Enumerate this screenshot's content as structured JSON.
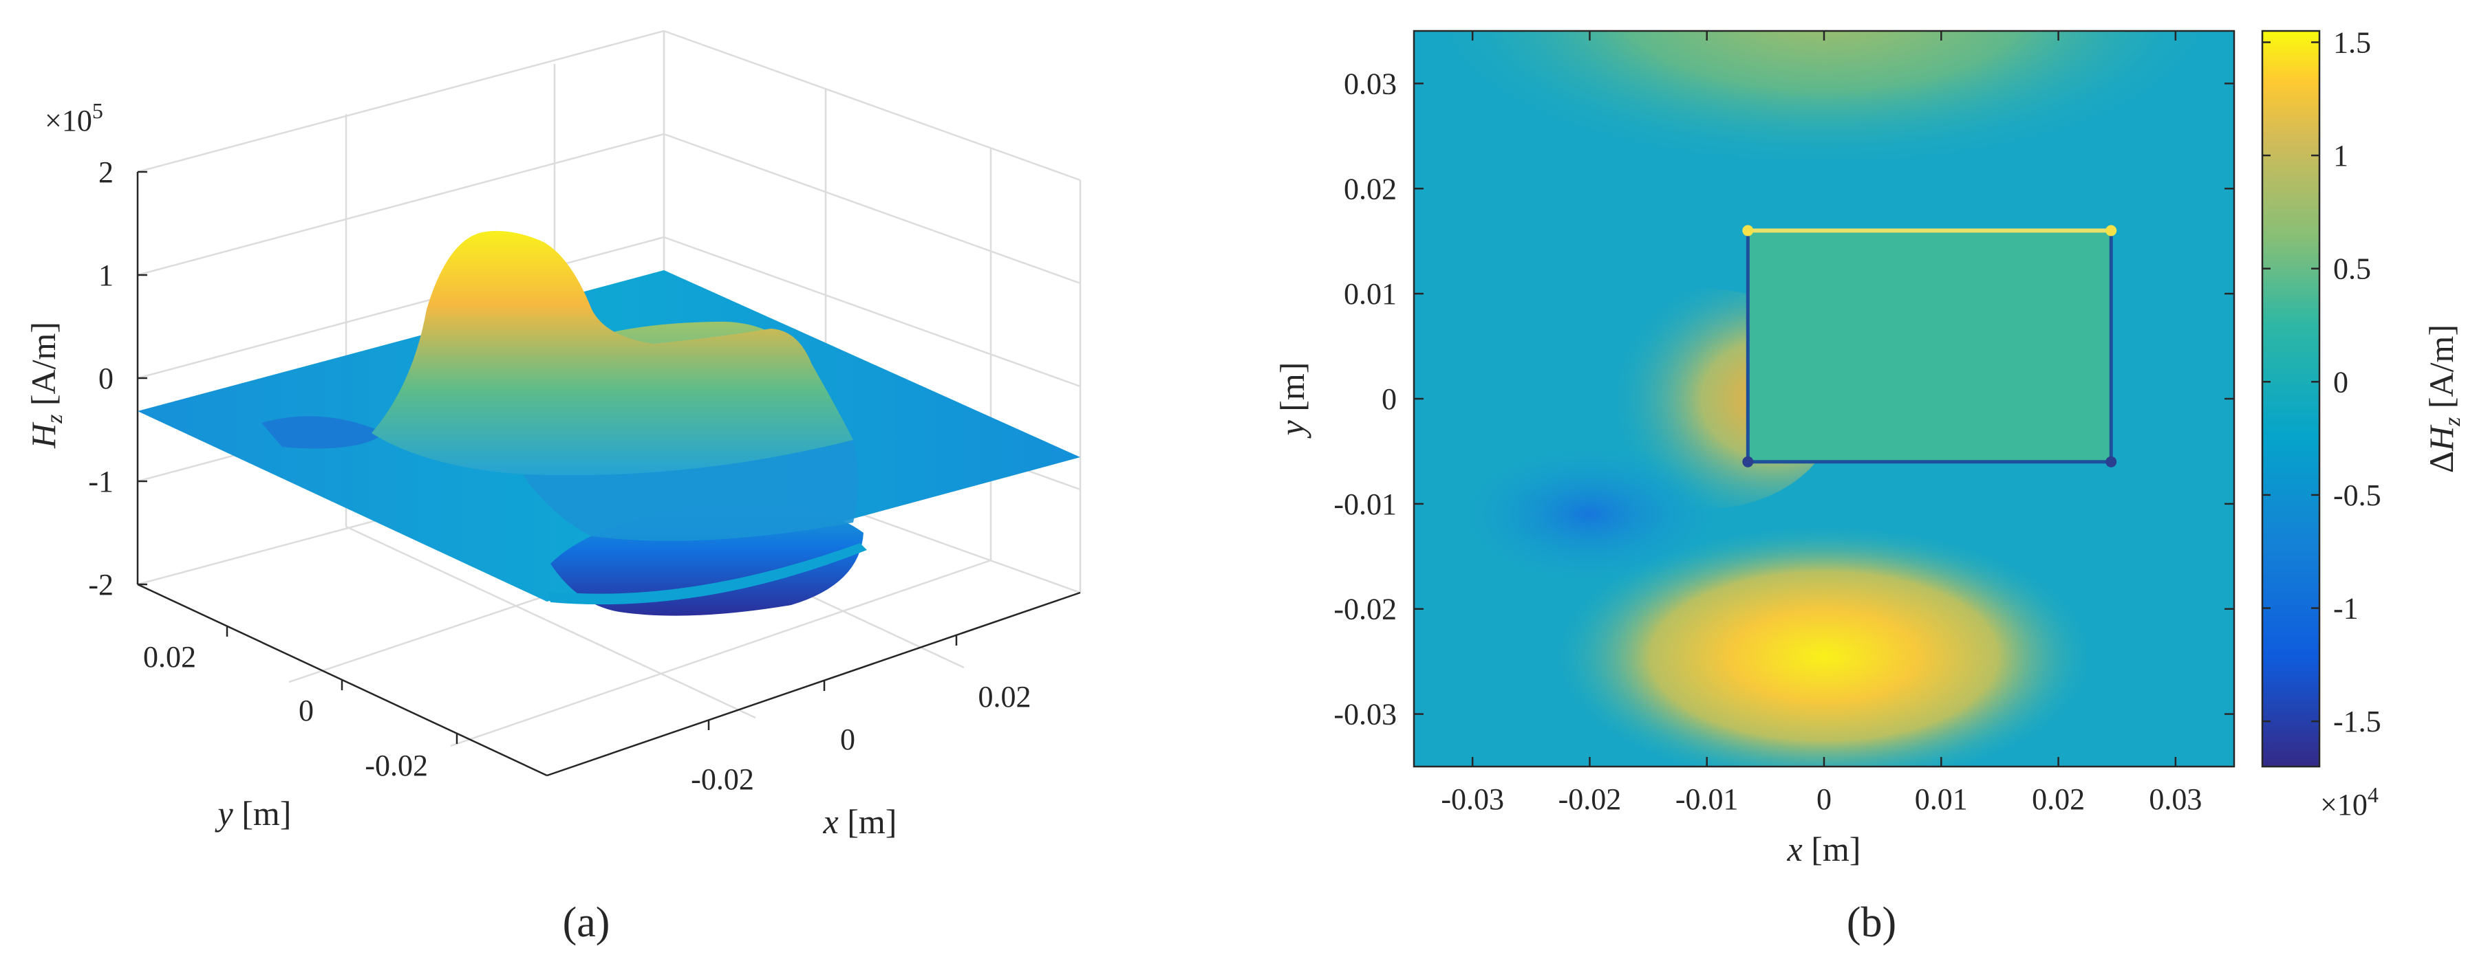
{
  "panels": [
    {
      "panel_label": "(a)",
      "chart_data": {
        "type": "surface",
        "zlabel": "H_z [A/m]",
        "xlabel": "x [m]",
        "ylabel": "y [m]",
        "zscale_label": "×10^5",
        "x_ticks": [
          "-0.02",
          "0",
          "0.02"
        ],
        "y_ticks": [
          "0.02",
          "0",
          "-0.02"
        ],
        "z_ticks": [
          "2",
          "1",
          "0",
          "-1",
          "-2"
        ],
        "z_tick_values": [
          2,
          1,
          0,
          -1,
          -2
        ],
        "zlim": [
          -2,
          2
        ],
        "z_multiplier": 100000,
        "colormap": "parula",
        "grid": true,
        "surface_features": [
          {
            "name": "peak",
            "x": -0.012,
            "y": 0.005,
            "z": 1.3
          },
          {
            "name": "shoulder",
            "x": 0.01,
            "y": 0.012,
            "z": 0.5
          },
          {
            "name": "trough",
            "x": 0.0,
            "y": -0.02,
            "z": -2.1
          },
          {
            "name": "baseline",
            "z": -0.35
          }
        ]
      }
    },
    {
      "panel_label": "(b)",
      "chart_data": {
        "type": "heatmap",
        "xlabel": "x [m]",
        "ylabel": "y [m]",
        "colorbar_label": "ΔH_z [A/m]",
        "colorbar_scale_label": "×10^4",
        "x_ticks": [
          "-0.03",
          "-0.02",
          "-0.01",
          "0",
          "0.01",
          "0.02",
          "0.03"
        ],
        "x_tick_values": [
          -0.03,
          -0.02,
          -0.01,
          0,
          0.01,
          0.02,
          0.03
        ],
        "y_ticks": [
          "0.03",
          "0.02",
          "0.01",
          "0",
          "-0.01",
          "-0.02",
          "-0.03"
        ],
        "y_tick_values": [
          0.03,
          0.02,
          0.01,
          0,
          -0.01,
          -0.02,
          -0.03
        ],
        "xlim": [
          -0.035,
          0.035
        ],
        "ylim": [
          -0.035,
          0.035
        ],
        "colorbar_ticks": [
          "1.5",
          "1",
          "0.5",
          "0",
          "-0.5",
          "-1",
          "-1.5"
        ],
        "colorbar_tick_values": [
          1.5,
          1,
          0.5,
          0,
          -0.5,
          -1,
          -1.5
        ],
        "clim": [
          -1.7,
          1.55
        ],
        "colormap": "parula",
        "rectangle": {
          "x": [
            -0.0065,
            0.0245
          ],
          "y": [
            -0.006,
            0.016
          ],
          "value": 0.35
        },
        "features": [
          {
            "name": "bottom-hotspot",
            "x": 0.0,
            "y": -0.0245,
            "value": 1.5,
            "rx": 0.012,
            "ry": 0.0065
          },
          {
            "name": "left-hotspot",
            "x": -0.01,
            "y": 0.0,
            "value": 1.0,
            "rx": 0.006,
            "ry": 0.0055
          },
          {
            "name": "top-hotspot",
            "x": 0.0,
            "y": 0.037,
            "value": 0.55,
            "rx": 0.018,
            "ry": 0.008
          },
          {
            "name": "left-low",
            "x": -0.02,
            "y": -0.011,
            "value": -1.0,
            "rx": 0.006,
            "ry": 0.0035
          }
        ],
        "background_value": -0.3
      }
    }
  ]
}
